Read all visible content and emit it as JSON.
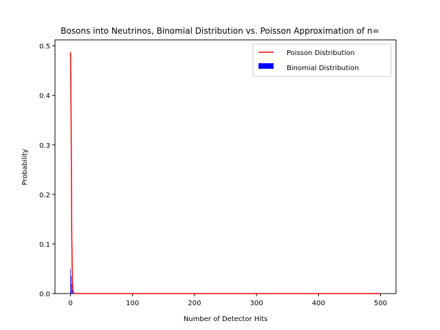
{
  "chart_data": {
    "type": "bar",
    "title": "Bosons into Neutrinos, Binomial Distribution vs. Poisson Approximation of n=",
    "xlabel": "Number of Detector Hits",
    "ylabel": "Probability",
    "xlim": [
      -25,
      525
    ],
    "ylim": [
      0,
      0.512
    ],
    "xticks": [
      0,
      100,
      200,
      300,
      400,
      500
    ],
    "yticks": [
      0.0,
      0.1,
      0.2,
      0.3,
      0.4,
      0.5
    ],
    "ytick_labels": [
      "0.0",
      "0.1",
      "0.2",
      "0.3",
      "0.4",
      "0.5"
    ],
    "legend_position": "top-right",
    "series": [
      {
        "name": "Poisson Distribution",
        "kind": "line",
        "color": "#ff0000",
        "x": [
          0,
          1,
          2,
          3,
          4,
          5,
          10,
          50,
          100,
          200,
          300,
          400,
          500
        ],
        "y": [
          0.487,
          0.35,
          0.125,
          0.03,
          0.005,
          0.001,
          0.0,
          0.0,
          0.0,
          0.0,
          0.0,
          0.0,
          0.0
        ]
      },
      {
        "name": "Binomial Distribution",
        "kind": "bar",
        "color": "#0000ff",
        "x": [
          0,
          1,
          2,
          3,
          4,
          5
        ],
        "y": [
          0.05,
          0.035,
          0.02,
          0.008,
          0.002,
          0.0005
        ]
      }
    ]
  }
}
